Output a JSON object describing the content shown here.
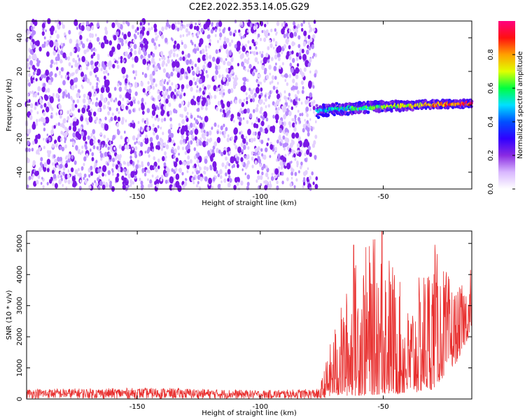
{
  "figure": {
    "title": "C2E2.2022.353.14.05.G29"
  },
  "chart_data": [
    {
      "type": "heatmap",
      "xlabel": "Height of straight line (km)",
      "ylabel": "Frequency (Hz)",
      "xlim": [
        -195,
        -14
      ],
      "ylim": [
        -50,
        50
      ],
      "xticks": [
        "-150",
        "-100",
        "-50"
      ],
      "yticks": [
        "-40",
        "-20",
        "0",
        "20",
        "40"
      ],
      "colorbar": {
        "label": "Normalized spectral amplitude",
        "range": [
          0,
          1
        ],
        "ticks": [
          "0.0",
          "0.2",
          "0.4",
          "0.6",
          "0.8"
        ],
        "colors": [
          "#ffffff",
          "#d9b8ff",
          "#8a2be2",
          "#3000ff",
          "#0050ff",
          "#00e0ff",
          "#00ff40",
          "#e0ff00",
          "#ffa000",
          "#ff1010",
          "#ff0080"
        ]
      },
      "features": [
        {
          "name": "noise",
          "x_range": [
            -195,
            -77
          ],
          "freq_range": [
            -50,
            50
          ],
          "amplitude_level": 0.1
        },
        {
          "name": "signal-track",
          "x_range": [
            -77,
            -14
          ],
          "freq_start": -4,
          "freq_end": 1,
          "amplitude_level": 0.85
        }
      ]
    },
    {
      "type": "line",
      "xlabel": "Height of straight line (km)",
      "ylabel": "SNR (10 * v/v)",
      "xlim": [
        -195,
        -14
      ],
      "ylim": [
        0,
        5400
      ],
      "xticks": [
        "-150",
        "-100",
        "-50"
      ],
      "yticks": [
        "0",
        "1000",
        "2000",
        "3000",
        "4000",
        "5000"
      ],
      "color": "#e8302f",
      "envelope": [
        {
          "x": -195,
          "low": 20,
          "high": 330
        },
        {
          "x": -140,
          "low": 10,
          "high": 360
        },
        {
          "x": -100,
          "low": 10,
          "high": 280
        },
        {
          "x": -76,
          "low": 10,
          "high": 330
        },
        {
          "x": -70,
          "low": 100,
          "high": 2300
        },
        {
          "x": -60,
          "low": 100,
          "high": 4800
        },
        {
          "x": -50,
          "low": 150,
          "high": 5400
        },
        {
          "x": -40,
          "low": 150,
          "high": 3000
        },
        {
          "x": -30,
          "low": 300,
          "high": 5000
        },
        {
          "x": -20,
          "low": 1200,
          "high": 3500
        },
        {
          "x": -14,
          "low": 2200,
          "high": 4100
        }
      ],
      "peaks": [
        {
          "x": -62,
          "y": 4950
        },
        {
          "x": -50.5,
          "y": 5400
        },
        {
          "x": -29,
          "y": 4960
        },
        {
          "x": -14.5,
          "y": 4150
        }
      ]
    }
  ]
}
